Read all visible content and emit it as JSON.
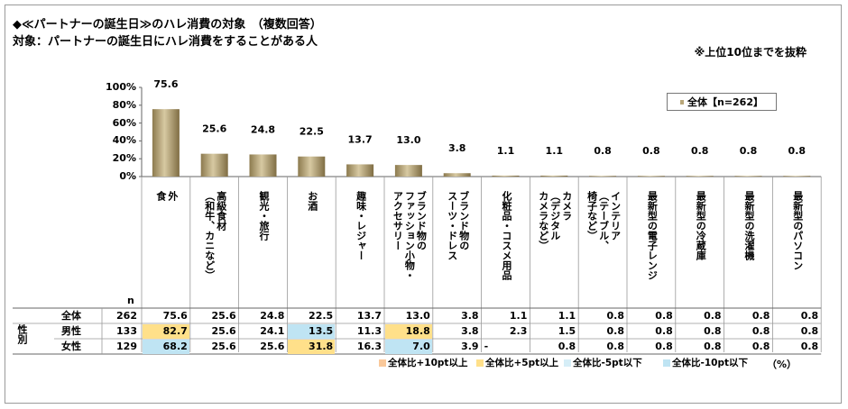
{
  "title": "◆≪パートナーの誕生日≫のハレ消費の対象　（複数回答）",
  "subtitle": "対象：パートナーの誕生日にハレ消費をすることがある人",
  "note": "※上位10位までを抜粋",
  "legend_label": "全体【n=262】",
  "n_header": "n",
  "unit": "（%）",
  "chart_data": {
    "type": "bar",
    "ylim": [
      0,
      100
    ],
    "yticks": [
      "100%",
      "80%",
      "60%",
      "40%",
      "20%",
      "0%"
    ],
    "categories": [
      "外食",
      "高級食材（和牛、カニなど）",
      "観光・旅行",
      "お酒",
      "趣味・レジャー",
      "ブランド物のファッション小物・アクセサリー",
      "ブランド物のスーツ・ドレス",
      "化粧品・コスメ用品",
      "カメラ（デジタルカメラなど）",
      "インテリア（テーブル、椅子など）",
      "最新型の電子レンジ",
      "最新型の冷蔵庫",
      "最新型の洗濯機",
      "最新型のパソコン"
    ],
    "category_lines": [
      [
        "外",
        "食"
      ],
      [
        "高級食材",
        "（和牛、カニなど）"
      ],
      [
        "観光・旅行"
      ],
      [
        "お酒"
      ],
      [
        "趣味・レジャー"
      ],
      [
        "ブランド物の",
        "ファッション小物・",
        "アクセサリー"
      ],
      [
        "ブランド物の",
        "スーツ・ドレス"
      ],
      [
        "化粧品・コスメ用品"
      ],
      [
        "カメラ",
        "（デジタル",
        "カメラなど）"
      ],
      [
        "インテリア",
        "（テーブル、",
        "椅子など）"
      ],
      [
        "最新型の電子レンジ"
      ],
      [
        "最新型の冷蔵庫"
      ],
      [
        "最新型の洗濯機"
      ],
      [
        "最新型のパソコン"
      ]
    ],
    "series": [
      {
        "name": "全体【n=262】",
        "values": [
          75.6,
          25.6,
          24.8,
          22.5,
          13.7,
          13.0,
          3.8,
          1.1,
          1.1,
          0.8,
          0.8,
          0.8,
          0.8,
          0.8
        ]
      }
    ],
    "value_labels": [
      "75.6",
      "25.6",
      "24.8",
      "22.5",
      "13.7",
      "13.0",
      "3.8",
      "1.1",
      "1.1",
      "0.8",
      "0.8",
      "0.8",
      "0.8",
      "0.8"
    ],
    "bar_color": "#a8956a"
  },
  "table": {
    "group_label": "性別",
    "rows": [
      {
        "label": "全体",
        "n": "262",
        "values": [
          "75.6",
          "25.6",
          "24.8",
          "22.5",
          "13.7",
          "13.0",
          "3.8",
          "1.1",
          "1.1",
          "0.8",
          "0.8",
          "0.8",
          "0.8",
          "0.8"
        ],
        "hl": [
          "",
          "",
          "",
          "",
          "",
          "",
          "",
          "",
          "",
          "",
          "",
          "",
          "",
          ""
        ]
      },
      {
        "label": "男性",
        "n": "133",
        "values": [
          "82.7",
          "25.6",
          "24.1",
          "13.5",
          "11.3",
          "18.8",
          "3.8",
          "2.3",
          "1.5",
          "0.8",
          "0.8",
          "0.8",
          "0.8",
          "0.8"
        ],
        "hl": [
          "orange",
          "",
          "",
          "blue",
          "",
          "orange",
          "",
          "",
          "",
          "",
          "",
          "",
          "",
          ""
        ]
      },
      {
        "label": "女性",
        "n": "129",
        "values": [
          "68.2",
          "25.6",
          "25.6",
          "31.8",
          "16.3",
          "7.0",
          "3.9",
          "-",
          "0.8",
          "0.8",
          "0.8",
          "0.8",
          "0.8",
          "0.8"
        ],
        "hl": [
          "blue",
          "",
          "",
          "orange",
          "",
          "blue",
          "",
          "",
          "",
          "",
          "",
          "",
          "",
          ""
        ]
      }
    ]
  },
  "key": [
    {
      "label": "全体比+10pt以上",
      "color": "#f9c89a"
    },
    {
      "label": "全体比+5pt以上",
      "color": "#ffe08a"
    },
    {
      "label": "全体比-5pt以下",
      "color": "#d6eef7"
    },
    {
      "label": "全体比-10pt以下",
      "color": "#bfe4f3"
    }
  ]
}
